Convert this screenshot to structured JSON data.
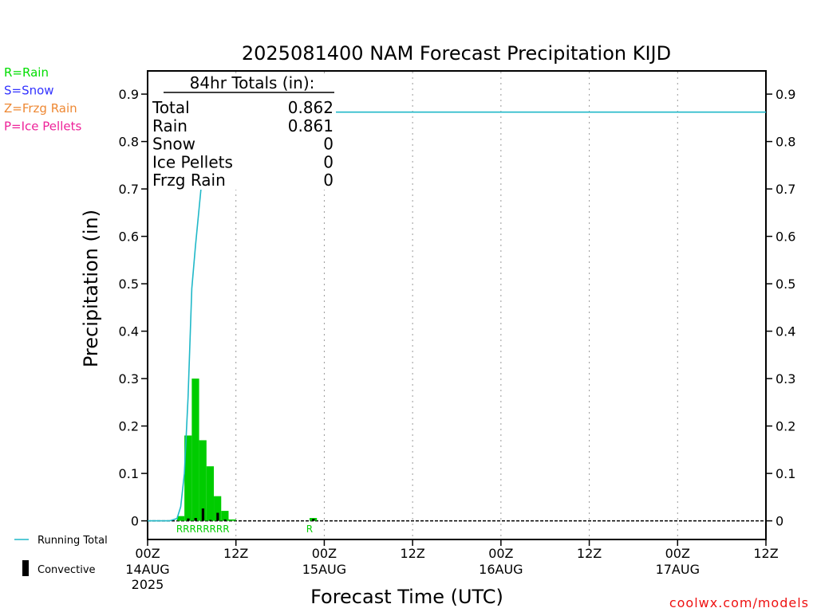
{
  "chart_data": {
    "type": "bar",
    "title": "2025081400 NAM Forecast Precipitation KIJD",
    "ylabel": "Precipitation (in)",
    "xlabel": "Forecast Time (UTC)",
    "ylim": [
      0,
      0.95
    ],
    "yticks": [
      "0",
      "0.1",
      "0.2",
      "0.3",
      "0.4",
      "0.5",
      "0.6",
      "0.7",
      "0.8",
      "0.9"
    ],
    "yticks_right": [
      "0",
      "0.1",
      "0.2",
      "0.3",
      "0.4",
      "0.5",
      "0.6",
      "0.7",
      "0.8",
      "0.9"
    ],
    "x_range_hours": [
      0,
      84
    ],
    "x_ticks": [
      {
        "hour": 0,
        "line1": "00Z",
        "line2": "14AUG",
        "line3": "2025"
      },
      {
        "hour": 12,
        "line1": "12Z",
        "line2": "",
        "line3": ""
      },
      {
        "hour": 24,
        "line1": "00Z",
        "line2": "15AUG",
        "line3": ""
      },
      {
        "hour": 36,
        "line1": "12Z",
        "line2": "",
        "line3": ""
      },
      {
        "hour": 48,
        "line1": "00Z",
        "line2": "16AUG",
        "line3": ""
      },
      {
        "hour": 60,
        "line1": "12Z",
        "line2": "",
        "line3": ""
      },
      {
        "hour": 72,
        "line1": "00Z",
        "line2": "17AUG",
        "line3": ""
      },
      {
        "hour": 84,
        "line1": "12Z",
        "line2": "",
        "line3": ""
      }
    ],
    "grid": "vertical dotted at 12-hour intervals",
    "totals_box": {
      "header": "84hr Totals (in):",
      "rows": [
        {
          "label": "Total",
          "value": "0.862"
        },
        {
          "label": "Rain",
          "value": "0.861"
        },
        {
          "label": "Snow",
          "value": "0"
        },
        {
          "label": "Ice Pellets",
          "value": "0"
        },
        {
          "label": "Frzg Rain",
          "value": "0"
        }
      ]
    },
    "hourly_precip": {
      "start_hours": [
        4,
        5,
        6,
        7,
        8,
        9,
        10,
        11,
        22
      ],
      "values": [
        0.01,
        0.18,
        0.3,
        0.17,
        0.115,
        0.052,
        0.021,
        0.003,
        0.006
      ],
      "convective": [
        0,
        0.005,
        0.006,
        0.026,
        0.002,
        0.017,
        0.003,
        0,
        0.004
      ]
    },
    "running_total": {
      "name": "Running Total",
      "x": [
        0,
        3,
        4,
        4.5,
        5,
        5.5,
        6,
        6.5,
        7,
        7.5,
        8,
        8.5,
        9,
        10,
        11,
        22,
        22.5,
        23,
        84
      ],
      "y": [
        0,
        0,
        0.005,
        0.03,
        0.1,
        0.26,
        0.49,
        0.58,
        0.66,
        0.74,
        0.78,
        0.8,
        0.83,
        0.852,
        0.855,
        0.855,
        0.858,
        0.862,
        0.862
      ]
    },
    "type_labels": [
      {
        "hour_start": 4,
        "hour_end": 11,
        "text": "RRRRRRRR"
      },
      {
        "hour_start": 21,
        "hour_end": 23,
        "text": "R"
      }
    ],
    "left_legend": [
      {
        "text": "R=Rain",
        "color": "#00dd00"
      },
      {
        "text": "S=Snow",
        "color": "#3333ff"
      },
      {
        "text": "Z=Frzg Rain",
        "color": "#ee8833"
      },
      {
        "text": "P=Ice Pellets",
        "color": "#ee2299"
      }
    ],
    "bottom_legend": {
      "line_label": "Running Total",
      "bar_label": "Convective"
    },
    "watermark": "coolwx.com/models",
    "colors": {
      "bar": "#00cc00",
      "convective": "#000000",
      "running_total": "#20b8c8",
      "rain_label": "#00cc00",
      "watermark": "#ee1111"
    }
  }
}
